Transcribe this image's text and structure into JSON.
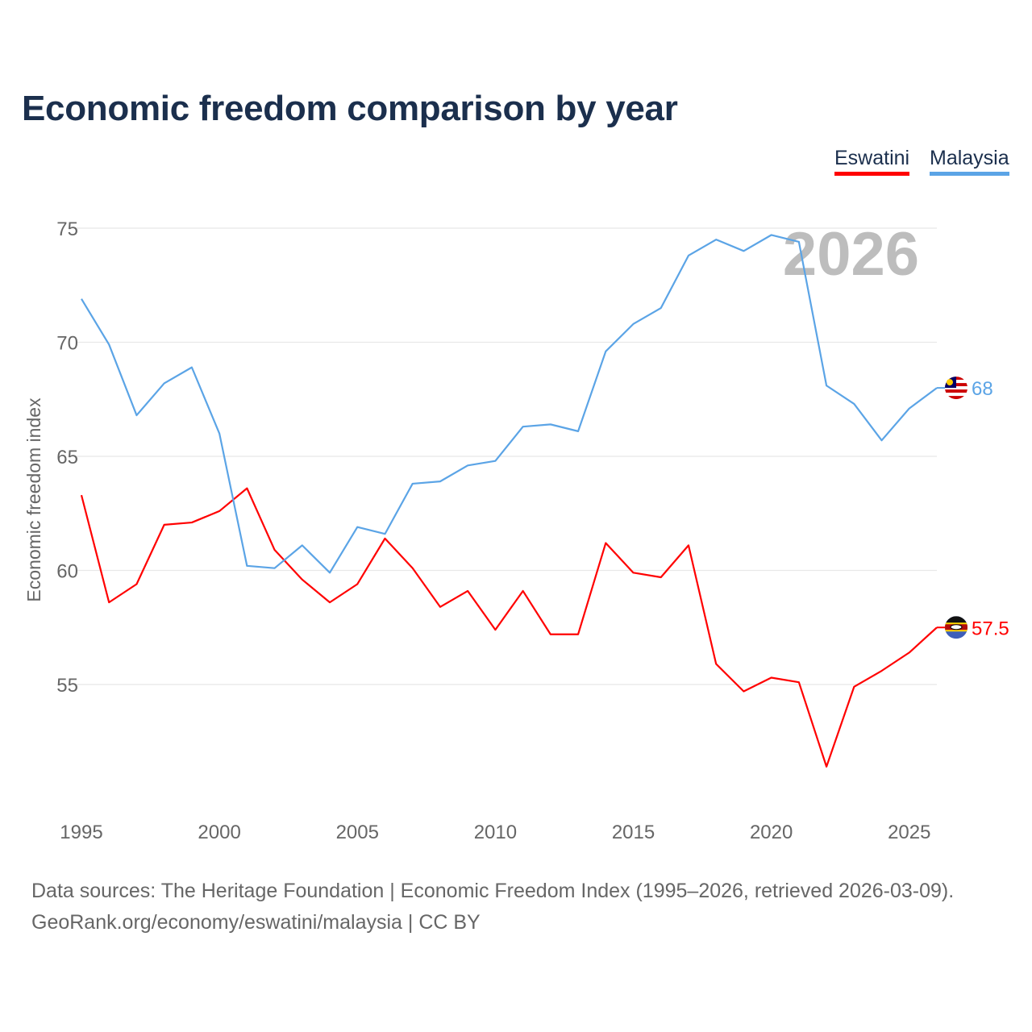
{
  "chart_data": {
    "type": "line",
    "title": "Economic freedom comparison by year",
    "xlabel": "",
    "ylabel": "Economic freedom index",
    "xlim": [
      1995,
      2026
    ],
    "ylim": [
      50,
      75
    ],
    "x_ticks": [
      1995,
      2000,
      2005,
      2010,
      2015,
      2020,
      2025
    ],
    "y_ticks": [
      55,
      60,
      65,
      70,
      75
    ],
    "grid": true,
    "legend_position": "top-right",
    "watermark_year": "2026",
    "x": [
      1995,
      1996,
      1997,
      1998,
      1999,
      2000,
      2001,
      2002,
      2003,
      2004,
      2005,
      2006,
      2007,
      2008,
      2009,
      2010,
      2011,
      2012,
      2013,
      2014,
      2015,
      2016,
      2017,
      2018,
      2019,
      2020,
      2021,
      2022,
      2023,
      2024,
      2025,
      2026
    ],
    "series": [
      {
        "name": "Eswatini",
        "color": "#ff0000",
        "end_label": "57.5",
        "values": [
          63.3,
          58.6,
          59.4,
          62.0,
          62.1,
          62.6,
          63.6,
          60.9,
          59.6,
          58.6,
          59.4,
          61.4,
          60.1,
          58.4,
          59.1,
          57.4,
          59.1,
          57.2,
          57.2,
          61.2,
          59.9,
          59.7,
          61.1,
          55.9,
          54.7,
          55.3,
          55.1,
          51.4,
          54.9,
          55.6,
          56.4,
          57.5
        ]
      },
      {
        "name": "Malaysia",
        "color": "#5ba4e6",
        "end_label": "68",
        "values": [
          71.9,
          69.9,
          66.8,
          68.2,
          68.9,
          66.0,
          60.2,
          60.1,
          61.1,
          59.9,
          61.9,
          61.6,
          63.8,
          63.9,
          64.6,
          64.8,
          66.3,
          66.4,
          66.1,
          69.6,
          70.8,
          71.5,
          73.8,
          74.5,
          74.0,
          74.7,
          74.4,
          68.1,
          67.3,
          65.7,
          67.1,
          68.0
        ]
      }
    ]
  },
  "footer": {
    "line1": "Data sources: The Heritage Foundation | Economic Freedom Index (1995–2026, retrieved 2026-03-09).",
    "line2": "GeoRank.org/economy/eswatini/malaysia | CC BY"
  }
}
